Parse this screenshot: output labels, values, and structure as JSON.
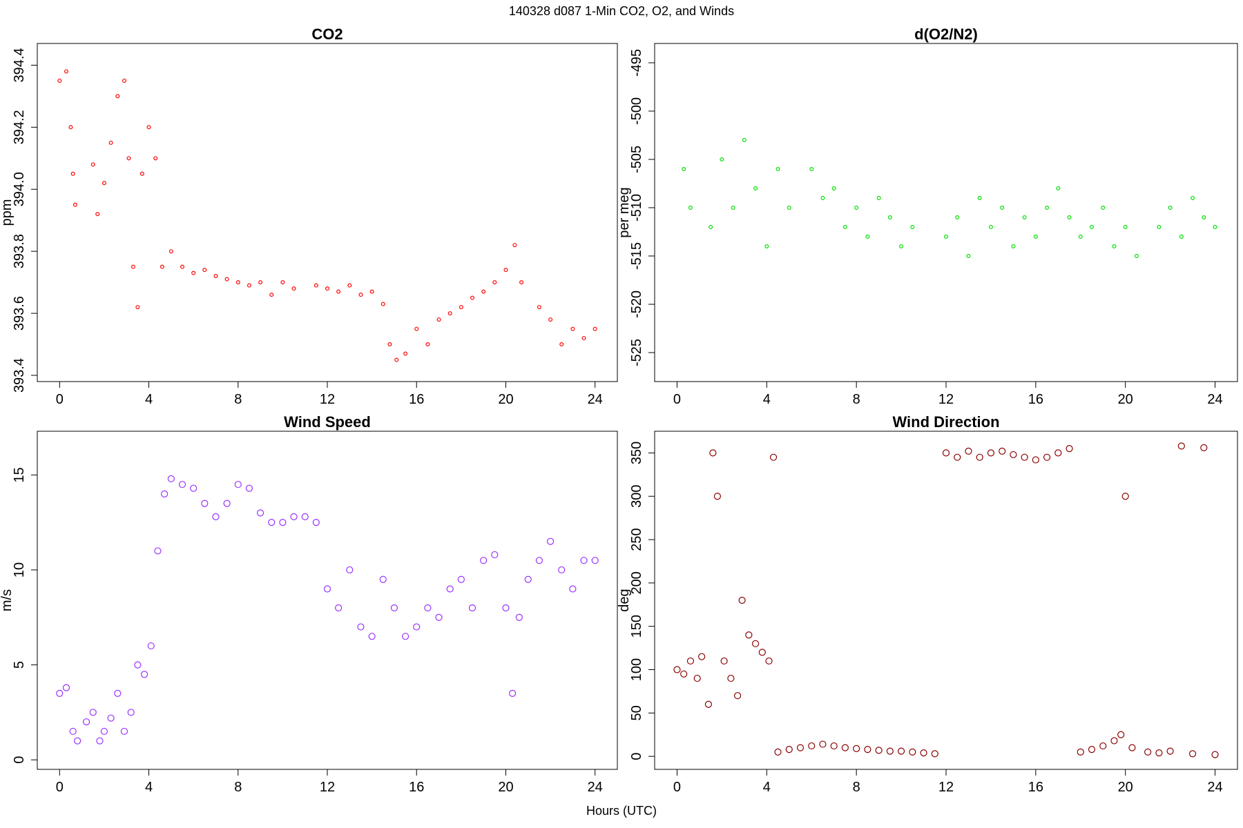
{
  "figure": {
    "title": "140328   d087   1-Min CO2, O2, and Winds",
    "xlabel": "Hours (UTC)"
  },
  "chart_data": [
    {
      "type": "scatter",
      "title": "CO2",
      "xlabel": "",
      "ylabel": "ppm",
      "xlim": [
        -1,
        25
      ],
      "ylim": [
        393.38,
        394.47
      ],
      "xticks": [
        0,
        4,
        8,
        12,
        16,
        20,
        24
      ],
      "yticks": [
        393.4,
        393.6,
        393.8,
        394.0,
        394.2,
        394.4
      ],
      "color": "#ff0000",
      "series": [
        {
          "values": [
            [
              0.0,
              394.35
            ],
            [
              0.3,
              394.38
            ],
            [
              0.5,
              394.2
            ],
            [
              0.6,
              394.05
            ],
            [
              0.7,
              393.95
            ],
            [
              1.5,
              394.08
            ],
            [
              1.7,
              393.92
            ],
            [
              2.0,
              394.02
            ],
            [
              2.3,
              394.15
            ],
            [
              2.6,
              394.3
            ],
            [
              2.9,
              394.35
            ],
            [
              3.1,
              394.1
            ],
            [
              3.3,
              393.75
            ],
            [
              3.5,
              393.62
            ],
            [
              3.7,
              394.05
            ],
            [
              4.0,
              394.2
            ],
            [
              4.3,
              394.1
            ],
            [
              4.6,
              393.75
            ],
            [
              5.0,
              393.8
            ],
            [
              5.5,
              393.75
            ],
            [
              6.0,
              393.73
            ],
            [
              6.5,
              393.74
            ],
            [
              7.0,
              393.72
            ],
            [
              7.5,
              393.71
            ],
            [
              8.0,
              393.7
            ],
            [
              8.5,
              393.69
            ],
            [
              9.0,
              393.7
            ],
            [
              9.5,
              393.66
            ],
            [
              10.0,
              393.7
            ],
            [
              10.5,
              393.68
            ],
            [
              11.5,
              393.69
            ],
            [
              12.0,
              393.68
            ],
            [
              12.5,
              393.67
            ],
            [
              13.0,
              393.69
            ],
            [
              13.5,
              393.66
            ],
            [
              14.0,
              393.67
            ],
            [
              14.5,
              393.63
            ],
            [
              14.8,
              393.5
            ],
            [
              15.1,
              393.45
            ],
            [
              15.5,
              393.47
            ],
            [
              16.0,
              393.55
            ],
            [
              16.5,
              393.5
            ],
            [
              17.0,
              393.58
            ],
            [
              17.5,
              393.6
            ],
            [
              18.0,
              393.62
            ],
            [
              18.5,
              393.65
            ],
            [
              19.0,
              393.67
            ],
            [
              19.5,
              393.7
            ],
            [
              20.0,
              393.74
            ],
            [
              20.4,
              393.82
            ],
            [
              20.7,
              393.7
            ],
            [
              21.5,
              393.62
            ],
            [
              22.0,
              393.58
            ],
            [
              22.5,
              393.5
            ],
            [
              23.0,
              393.55
            ],
            [
              23.5,
              393.52
            ],
            [
              24.0,
              393.55
            ]
          ]
        }
      ]
    },
    {
      "type": "scatter",
      "title": "d(O2/N2)",
      "xlabel": "",
      "ylabel": "per meg",
      "xlim": [
        -1,
        25
      ],
      "ylim": [
        -528,
        -493
      ],
      "xticks": [
        0,
        4,
        8,
        12,
        16,
        20,
        24
      ],
      "yticks": [
        -525,
        -520,
        -515,
        -510,
        -505,
        -500,
        -495
      ],
      "color": "#00e000",
      "series": [
        {
          "values": [
            [
              0.3,
              -506
            ],
            [
              0.6,
              -510
            ],
            [
              1.5,
              -512
            ],
            [
              2.0,
              -505
            ],
            [
              2.5,
              -510
            ],
            [
              3.0,
              -503
            ],
            [
              3.5,
              -508
            ],
            [
              4.0,
              -514
            ],
            [
              4.5,
              -506
            ],
            [
              5.0,
              -510
            ],
            [
              6.0,
              -506
            ],
            [
              6.5,
              -509
            ],
            [
              7.0,
              -508
            ],
            [
              7.5,
              -512
            ],
            [
              8.0,
              -510
            ],
            [
              8.5,
              -513
            ],
            [
              9.0,
              -509
            ],
            [
              9.5,
              -511
            ],
            [
              10.0,
              -514
            ],
            [
              10.5,
              -512
            ],
            [
              12.0,
              -513
            ],
            [
              12.5,
              -511
            ],
            [
              13.0,
              -515
            ],
            [
              13.5,
              -509
            ],
            [
              14.0,
              -512
            ],
            [
              14.5,
              -510
            ],
            [
              15.0,
              -514
            ],
            [
              15.5,
              -511
            ],
            [
              16.0,
              -513
            ],
            [
              16.5,
              -510
            ],
            [
              17.0,
              -508
            ],
            [
              17.5,
              -511
            ],
            [
              18.0,
              -513
            ],
            [
              18.5,
              -512
            ],
            [
              19.0,
              -510
            ],
            [
              19.5,
              -514
            ],
            [
              20.0,
              -512
            ],
            [
              20.5,
              -515
            ],
            [
              21.5,
              -512
            ],
            [
              22.0,
              -510
            ],
            [
              22.5,
              -513
            ],
            [
              23.0,
              -509
            ],
            [
              23.5,
              -511
            ],
            [
              24.0,
              -512
            ]
          ]
        }
      ]
    },
    {
      "type": "scatter",
      "title": "Wind Speed",
      "xlabel": "",
      "ylabel": "m/s",
      "xlim": [
        -1,
        25
      ],
      "ylim": [
        -0.5,
        17.3
      ],
      "xticks": [
        0,
        4,
        8,
        12,
        16,
        20,
        24
      ],
      "yticks": [
        0,
        5,
        10,
        15
      ],
      "color": "#9b30ff",
      "series": [
        {
          "values": [
            [
              0.0,
              3.5
            ],
            [
              0.3,
              3.8
            ],
            [
              0.6,
              1.5
            ],
            [
              0.8,
              1.0
            ],
            [
              1.2,
              2.0
            ],
            [
              1.5,
              2.5
            ],
            [
              1.8,
              1.0
            ],
            [
              2.0,
              1.5
            ],
            [
              2.3,
              2.2
            ],
            [
              2.6,
              3.5
            ],
            [
              2.9,
              1.5
            ],
            [
              3.2,
              2.5
            ],
            [
              3.5,
              5.0
            ],
            [
              3.8,
              4.5
            ],
            [
              4.1,
              6.0
            ],
            [
              4.4,
              11.0
            ],
            [
              4.7,
              14.0
            ],
            [
              5.0,
              14.8
            ],
            [
              5.5,
              14.5
            ],
            [
              6.0,
              14.3
            ],
            [
              6.5,
              13.5
            ],
            [
              7.0,
              12.8
            ],
            [
              7.5,
              13.5
            ],
            [
              8.0,
              14.5
            ],
            [
              8.5,
              14.3
            ],
            [
              9.0,
              13.0
            ],
            [
              9.5,
              12.5
            ],
            [
              10.0,
              12.5
            ],
            [
              10.5,
              12.8
            ],
            [
              11.0,
              12.8
            ],
            [
              11.5,
              12.5
            ],
            [
              12.0,
              9.0
            ],
            [
              12.5,
              8.0
            ],
            [
              13.0,
              10.0
            ],
            [
              13.5,
              7.0
            ],
            [
              14.0,
              6.5
            ],
            [
              14.5,
              9.5
            ],
            [
              15.0,
              8.0
            ],
            [
              15.5,
              6.5
            ],
            [
              16.0,
              7.0
            ],
            [
              16.5,
              8.0
            ],
            [
              17.0,
              7.5
            ],
            [
              17.5,
              9.0
            ],
            [
              18.0,
              9.5
            ],
            [
              18.5,
              8.0
            ],
            [
              19.0,
              10.5
            ],
            [
              19.5,
              10.8
            ],
            [
              20.0,
              8.0
            ],
            [
              20.3,
              3.5
            ],
            [
              20.6,
              7.5
            ],
            [
              21.0,
              9.5
            ],
            [
              21.5,
              10.5
            ],
            [
              22.0,
              11.5
            ],
            [
              22.5,
              10.0
            ],
            [
              23.0,
              9.0
            ],
            [
              23.5,
              10.5
            ],
            [
              24.0,
              10.5
            ]
          ]
        }
      ]
    },
    {
      "type": "scatter",
      "title": "Wind Direction",
      "xlabel": "",
      "ylabel": "deg",
      "xlim": [
        -1,
        25
      ],
      "ylim": [
        -15,
        375
      ],
      "xticks": [
        0,
        4,
        8,
        12,
        16,
        20,
        24
      ],
      "yticks": [
        0,
        50,
        100,
        150,
        200,
        250,
        300,
        350
      ],
      "color": "#8b0000",
      "series": [
        {
          "values": [
            [
              0.0,
              100
            ],
            [
              0.3,
              95
            ],
            [
              0.6,
              110
            ],
            [
              0.9,
              90
            ],
            [
              1.1,
              115
            ],
            [
              1.4,
              60
            ],
            [
              1.6,
              350
            ],
            [
              1.8,
              300
            ],
            [
              2.1,
              110
            ],
            [
              2.4,
              90
            ],
            [
              2.7,
              70
            ],
            [
              2.9,
              180
            ],
            [
              3.2,
              140
            ],
            [
              3.5,
              130
            ],
            [
              3.8,
              120
            ],
            [
              4.1,
              110
            ],
            [
              4.3,
              345
            ],
            [
              4.5,
              5
            ],
            [
              5.0,
              8
            ],
            [
              5.5,
              10
            ],
            [
              6.0,
              12
            ],
            [
              6.5,
              14
            ],
            [
              7.0,
              12
            ],
            [
              7.5,
              10
            ],
            [
              8.0,
              9
            ],
            [
              8.5,
              8
            ],
            [
              9.0,
              7
            ],
            [
              9.5,
              6
            ],
            [
              10.0,
              6
            ],
            [
              10.5,
              5
            ],
            [
              11.0,
              4
            ],
            [
              11.5,
              3
            ],
            [
              12.0,
              350
            ],
            [
              12.5,
              345
            ],
            [
              13.0,
              352
            ],
            [
              13.5,
              345
            ],
            [
              14.0,
              350
            ],
            [
              14.5,
              352
            ],
            [
              15.0,
              348
            ],
            [
              15.5,
              345
            ],
            [
              16.0,
              342
            ],
            [
              16.5,
              345
            ],
            [
              17.0,
              350
            ],
            [
              17.5,
              355
            ],
            [
              18.0,
              5
            ],
            [
              18.5,
              8
            ],
            [
              19.0,
              12
            ],
            [
              19.5,
              18
            ],
            [
              19.8,
              25
            ],
            [
              20.0,
              300
            ],
            [
              20.3,
              10
            ],
            [
              21.0,
              5
            ],
            [
              21.5,
              4
            ],
            [
              22.0,
              6
            ],
            [
              22.5,
              358
            ],
            [
              23.0,
              3
            ],
            [
              23.5,
              356
            ],
            [
              24.0,
              2
            ]
          ]
        }
      ]
    }
  ]
}
